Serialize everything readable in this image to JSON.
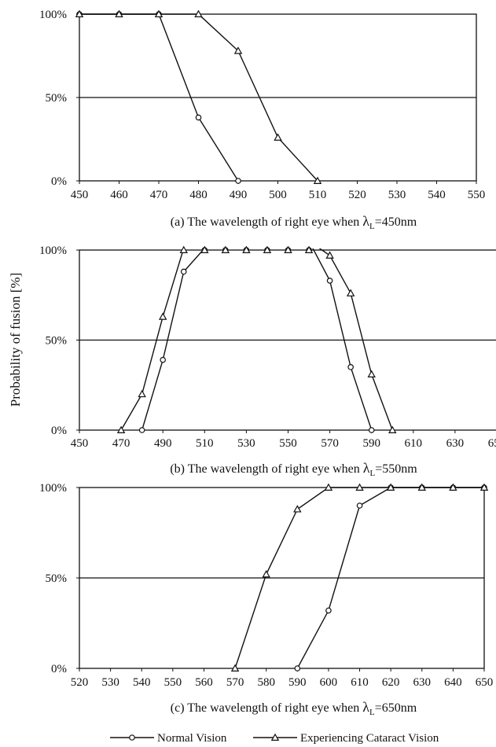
{
  "y_axis_label": "Probability of fusion [%]",
  "legend": {
    "items": [
      {
        "label": "Normal Vision",
        "marker": "circle"
      },
      {
        "label": "Experiencing Cataract Vision",
        "marker": "triangle"
      }
    ],
    "placement": "bottom-center"
  },
  "chart_data": [
    {
      "type": "line",
      "caption_prefix": "(a) The wavelength of right eye when ",
      "caption_lambda": "λ",
      "caption_sub": "L",
      "caption_suffix": "=450nm",
      "xlim": [
        450,
        550
      ],
      "xticks": [
        450,
        460,
        470,
        480,
        490,
        500,
        510,
        520,
        530,
        540,
        550
      ],
      "ylim": [
        0,
        100
      ],
      "yticks": [
        0,
        50,
        100
      ],
      "ytick_labels": [
        "0%",
        "50%",
        "100%"
      ],
      "grid": "horizontal at 50%",
      "series": [
        {
          "name": "Normal Vision",
          "marker": "circle",
          "x": [
            450,
            460,
            470,
            480,
            490
          ],
          "y": [
            100,
            100,
            100,
            38,
            0
          ]
        },
        {
          "name": "Experiencing Cataract Vision",
          "marker": "triangle",
          "x": [
            450,
            460,
            470,
            480,
            490,
            500,
            510
          ],
          "y": [
            100,
            100,
            100,
            100,
            78,
            26,
            0
          ]
        }
      ]
    },
    {
      "type": "line",
      "caption_prefix": "(b) The wavelength of right eye when ",
      "caption_lambda": "λ",
      "caption_sub": "L",
      "caption_suffix": "=550nm",
      "xlim": [
        450,
        650
      ],
      "xticks": [
        450,
        470,
        490,
        510,
        530,
        550,
        570,
        590,
        610,
        630,
        650
      ],
      "ylim": [
        0,
        100
      ],
      "yticks": [
        0,
        50,
        100
      ],
      "ytick_labels": [
        "0%",
        "50%",
        "100%"
      ],
      "grid": "horizontal at 50%",
      "series": [
        {
          "name": "Normal Vision",
          "marker": "circle",
          "x": [
            480,
            490,
            500,
            510,
            520,
            530,
            540,
            550,
            560,
            570,
            580,
            590
          ],
          "y": [
            0,
            39,
            88,
            101,
            105,
            105,
            105,
            105,
            105,
            83,
            35,
            0
          ]
        },
        {
          "name": "Experiencing Cataract Vision",
          "marker": "triangle",
          "x": [
            470,
            480,
            490,
            500,
            510,
            520,
            530,
            540,
            550,
            560,
            570,
            580,
            590,
            600
          ],
          "y": [
            0,
            20,
            63,
            101,
            105,
            105,
            105,
            105,
            105,
            105,
            97,
            76,
            31,
            0
          ]
        }
      ]
    },
    {
      "type": "line",
      "caption_prefix": "(c) The wavelength of right eye when ",
      "caption_lambda": "λ",
      "caption_sub": "L",
      "caption_suffix": "=650nm",
      "xlim": [
        520,
        650
      ],
      "xticks": [
        520,
        530,
        540,
        550,
        560,
        570,
        580,
        590,
        600,
        610,
        620,
        630,
        640,
        650
      ],
      "ylim": [
        0,
        100
      ],
      "yticks": [
        0,
        50,
        100
      ],
      "ytick_labels": [
        "0%",
        "50%",
        "100%"
      ],
      "grid": "horizontal at 50%",
      "series": [
        {
          "name": "Normal Vision",
          "marker": "circle",
          "x": [
            590,
            600,
            610,
            620,
            630,
            640,
            650
          ],
          "y": [
            0,
            32,
            90,
            100,
            100,
            100,
            100
          ]
        },
        {
          "name": "Experiencing Cataract Vision",
          "marker": "triangle",
          "x": [
            570,
            580,
            590,
            600,
            610,
            620,
            630,
            640,
            650
          ],
          "y": [
            0,
            52,
            88,
            100,
            100,
            100,
            100,
            100,
            100
          ]
        }
      ]
    }
  ]
}
